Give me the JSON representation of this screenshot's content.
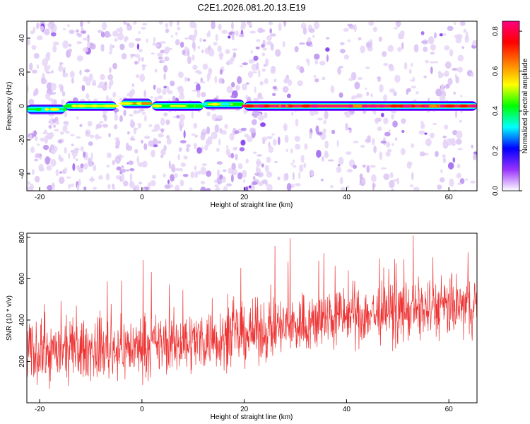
{
  "figure": {
    "title": "C2E1.2026.081.20.13.E19"
  },
  "chart_data": [
    {
      "type": "heatmap",
      "name": "spectrogram",
      "xlabel": "Height of straight line (km)",
      "ylabel": "Frequency (Hz)",
      "xlim": [
        -22.5,
        65.5
      ],
      "ylim": [
        -50,
        50
      ],
      "xticks": [
        -20,
        0,
        20,
        40,
        60
      ],
      "yticks": [
        -40,
        -20,
        0,
        20,
        40
      ],
      "x_tick_labels": [
        "-20",
        "0",
        "20",
        "40",
        "60"
      ],
      "y_tick_labels": [
        "-40",
        "-20",
        "0",
        "20",
        "40"
      ],
      "band_center_hz": 0,
      "band_segments": [
        {
          "x0": -22.5,
          "x1": -15,
          "f": -2,
          "amp": 0.45
        },
        {
          "x0": -15,
          "x1": -5,
          "f": 0,
          "amp": 0.55
        },
        {
          "x0": -4,
          "x1": 2,
          "f": 1.5,
          "amp": 0.6
        },
        {
          "x0": 2,
          "x1": 12,
          "f": 0,
          "amp": 0.55
        },
        {
          "x0": 12,
          "x1": 20,
          "f": 1,
          "amp": 0.5
        },
        {
          "x0": 20,
          "x1": 65.5,
          "f": 0,
          "amp": 0.85
        }
      ],
      "colorbar": {
        "label": "Normalized spectral amplitude",
        "range": [
          0,
          0.85
        ],
        "ticks": [
          0.0,
          0.2,
          0.4,
          0.6,
          0.8
        ],
        "tick_labels": [
          "0.0",
          "0.2",
          "0.4",
          "0.6",
          "0.8"
        ],
        "colors": [
          "#ffffff",
          "#9932ff",
          "#0000ff",
          "#00ffff",
          "#00ff00",
          "#ffff00",
          "#ff8000",
          "#ff0000",
          "#ff0080"
        ]
      }
    },
    {
      "type": "line",
      "name": "snr",
      "xlabel": "Height of straight line (km)",
      "ylabel": "SNR (10 * v/v)",
      "xlim": [
        -22.5,
        65.5
      ],
      "ylim": [
        0,
        820
      ],
      "xticks": [
        -20,
        0,
        20,
        40,
        60
      ],
      "yticks": [
        200,
        400,
        600,
        800
      ],
      "x_tick_labels": [
        "-20",
        "0",
        "20",
        "40",
        "60"
      ],
      "y_tick_labels": [
        "200",
        "400",
        "600",
        "800"
      ],
      "color": "#ee3333",
      "trend": [
        {
          "x": -22.5,
          "mean": 240
        },
        {
          "x": 0,
          "mean": 270
        },
        {
          "x": 20,
          "mean": 330
        },
        {
          "x": 40,
          "mean": 420
        },
        {
          "x": 65.5,
          "mean": 470
        }
      ],
      "spread": 130,
      "peak": 820
    }
  ]
}
